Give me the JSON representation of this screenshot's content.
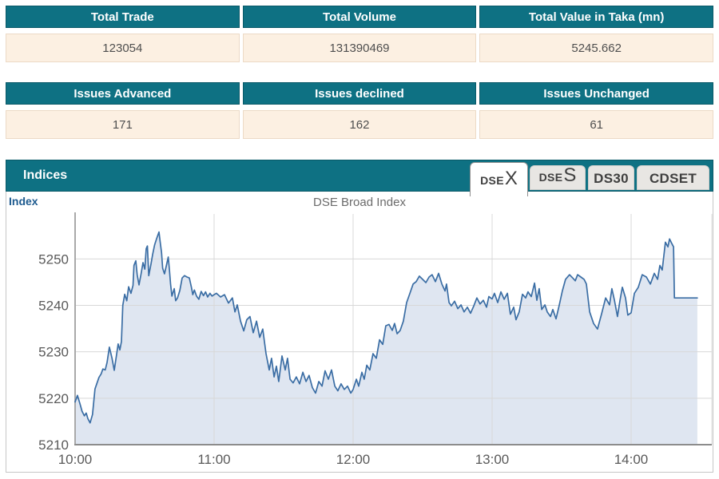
{
  "colors": {
    "teal_header": "#0e7183",
    "teal_border": "#0a5968",
    "value_row_bg": "#fcf0e2",
    "value_row_border": "#ecdac6",
    "axis_label_blue": "#1d5a8f"
  },
  "summary_tables": [
    {
      "columns": [
        {
          "header": "Total Trade",
          "value": "123054"
        },
        {
          "header": "Total Volume",
          "value": "131390469"
        },
        {
          "header": "Total Value in Taka (mn)",
          "value": "5245.662"
        }
      ]
    },
    {
      "columns": [
        {
          "header": "Issues Advanced",
          "value": "171"
        },
        {
          "header": "Issues declined",
          "value": "162"
        },
        {
          "header": "Issues Unchanged",
          "value": "61"
        }
      ]
    }
  ],
  "indices_panel": {
    "title": "Indices",
    "tabs": [
      {
        "prefix": "DSE",
        "suffix": "X",
        "active": true
      },
      {
        "prefix": "DSE",
        "suffix": "S",
        "active": false
      },
      {
        "prefix": "DS30",
        "suffix": "",
        "active": false
      },
      {
        "prefix": "CDSET",
        "suffix": "",
        "active": false
      }
    ]
  },
  "chart_data": {
    "type": "area",
    "title": "DSE Broad Index",
    "axis_label": "Index",
    "x_tick_minutes": [
      0,
      60,
      120,
      180,
      240
    ],
    "x_tick_labels": [
      "10:00",
      "11:00",
      "12:00",
      "13:00",
      "14:00"
    ],
    "y_ticks": [
      5210,
      5220,
      5230,
      5240,
      5250
    ],
    "ylim": [
      5210,
      5259
    ],
    "xlim_minutes": [
      0,
      275
    ],
    "grid": true,
    "line_color": "#3a6da4",
    "fill_color": "#dce3f0",
    "grid_color": "#d8d8d8",
    "tick_color": "#5a5a5a",
    "series": [
      {
        "name": "DSE Broad Index",
        "points": [
          [
            0,
            5219.2
          ],
          [
            1,
            5220.6
          ],
          [
            2,
            5219.0
          ],
          [
            3,
            5217.2
          ],
          [
            4,
            5216.2
          ],
          [
            4.8,
            5216.8
          ],
          [
            5.5,
            5215.6
          ],
          [
            6.5,
            5214.7
          ],
          [
            7.5,
            5216.5
          ],
          [
            8.6,
            5222.0
          ],
          [
            10.3,
            5224.5
          ],
          [
            11.2,
            5225.2
          ],
          [
            12,
            5226.3
          ],
          [
            13,
            5226.1
          ],
          [
            13.8,
            5227.7
          ],
          [
            14.8,
            5231.0
          ],
          [
            15.9,
            5228.7
          ],
          [
            16.9,
            5226.0
          ],
          [
            18,
            5229.7
          ],
          [
            18.6,
            5231.7
          ],
          [
            19.3,
            5230.4
          ],
          [
            20,
            5232.2
          ],
          [
            20.6,
            5240.0
          ],
          [
            21.4,
            5242.4
          ],
          [
            22.3,
            5241.0
          ],
          [
            23.1,
            5244.0
          ],
          [
            24.1,
            5242.6
          ],
          [
            25,
            5244.3
          ],
          [
            25.4,
            5248.6
          ],
          [
            26.2,
            5249.6
          ],
          [
            26.8,
            5246.6
          ],
          [
            27.6,
            5244.4
          ],
          [
            28.4,
            5246.6
          ],
          [
            29.3,
            5249.2
          ],
          [
            30.1,
            5247.8
          ],
          [
            30.7,
            5252.2
          ],
          [
            31.2,
            5252.8
          ],
          [
            31.8,
            5246.4
          ],
          [
            32.8,
            5249.0
          ],
          [
            33.5,
            5251.0
          ],
          [
            34.3,
            5253.0
          ],
          [
            35.2,
            5254.4
          ],
          [
            36.2,
            5255.8
          ],
          [
            36.8,
            5253.4
          ],
          [
            37.3,
            5251.4
          ],
          [
            37.8,
            5248.0
          ],
          [
            38.6,
            5246.8
          ],
          [
            39.4,
            5248.6
          ],
          [
            40.2,
            5250.4
          ],
          [
            40.7,
            5247.8
          ],
          [
            41.2,
            5244.6
          ],
          [
            41.8,
            5242.0
          ],
          [
            42.8,
            5243.6
          ],
          [
            43.4,
            5241.0
          ],
          [
            44.2,
            5241.6
          ],
          [
            45.2,
            5243.2
          ],
          [
            46.2,
            5245.9
          ],
          [
            47.2,
            5246.4
          ],
          [
            48.3,
            5246.1
          ],
          [
            49.3,
            5245.9
          ],
          [
            50.2,
            5243.9
          ],
          [
            50.8,
            5242.3
          ],
          [
            51.5,
            5243.3
          ],
          [
            52.4,
            5242.0
          ],
          [
            53.4,
            5241.3
          ],
          [
            54.4,
            5243.0
          ],
          [
            55.4,
            5242.1
          ],
          [
            56.3,
            5242.9
          ],
          [
            57.2,
            5241.8
          ],
          [
            58.2,
            5242.6
          ],
          [
            59.1,
            5242.0
          ],
          [
            60,
            5242.3
          ],
          [
            61,
            5242.6
          ],
          [
            62.8,
            5241.8
          ],
          [
            64.5,
            5242.3
          ],
          [
            66.2,
            5240.5
          ],
          [
            67.9,
            5241.6
          ],
          [
            69,
            5238.6
          ],
          [
            70,
            5240.1
          ],
          [
            71.4,
            5236.6
          ],
          [
            72.8,
            5234.5
          ],
          [
            74.1,
            5236.9
          ],
          [
            75.5,
            5237.6
          ],
          [
            76.9,
            5234.1
          ],
          [
            78.3,
            5236.6
          ],
          [
            79.7,
            5233.1
          ],
          [
            81,
            5234.9
          ],
          [
            82.4,
            5229.6
          ],
          [
            83.8,
            5226.1
          ],
          [
            84.8,
            5228.6
          ],
          [
            85.9,
            5224.6
          ],
          [
            86.9,
            5226.9
          ],
          [
            87.9,
            5223.6
          ],
          [
            89.3,
            5229.1
          ],
          [
            90.7,
            5226.1
          ],
          [
            91.7,
            5228.6
          ],
          [
            92.8,
            5224.1
          ],
          [
            94.1,
            5223.3
          ],
          [
            95.5,
            5224.6
          ],
          [
            96.9,
            5223.1
          ],
          [
            98.3,
            5225.6
          ],
          [
            99.7,
            5223.6
          ],
          [
            101,
            5224.9
          ],
          [
            102.4,
            5222.3
          ],
          [
            103.8,
            5221.1
          ],
          [
            105.2,
            5223.6
          ],
          [
            106.6,
            5222.6
          ],
          [
            107.9,
            5225.9
          ],
          [
            109.3,
            5224.1
          ],
          [
            110.7,
            5226.1
          ],
          [
            112.1,
            5222.6
          ],
          [
            113.4,
            5221.6
          ],
          [
            114.8,
            5223.1
          ],
          [
            116.2,
            5221.9
          ],
          [
            117.6,
            5222.6
          ],
          [
            119,
            5221.1
          ],
          [
            120,
            5221.9
          ],
          [
            121.4,
            5224.1
          ],
          [
            122.4,
            5222.6
          ],
          [
            123.8,
            5225.6
          ],
          [
            124.8,
            5224.1
          ],
          [
            125.9,
            5227.1
          ],
          [
            127.2,
            5226.1
          ],
          [
            128.6,
            5229.6
          ],
          [
            130,
            5228.6
          ],
          [
            131.4,
            5232.6
          ],
          [
            132.8,
            5231.6
          ],
          [
            134.1,
            5235.6
          ],
          [
            135.5,
            5235.9
          ],
          [
            136.9,
            5234.6
          ],
          [
            137.9,
            5236.1
          ],
          [
            139,
            5233.9
          ],
          [
            140.3,
            5234.6
          ],
          [
            141.7,
            5236.6
          ],
          [
            143.1,
            5240.6
          ],
          [
            144.5,
            5242.6
          ],
          [
            145.9,
            5244.6
          ],
          [
            147.2,
            5245.1
          ],
          [
            148.6,
            5246.3
          ],
          [
            150,
            5245.6
          ],
          [
            151.4,
            5244.9
          ],
          [
            152.8,
            5246.1
          ],
          [
            154.1,
            5246.6
          ],
          [
            155.5,
            5245.1
          ],
          [
            156.9,
            5246.9
          ],
          [
            158.3,
            5244.6
          ],
          [
            159.7,
            5243.1
          ],
          [
            160.3,
            5244.6
          ],
          [
            161.4,
            5240.6
          ],
          [
            162.4,
            5239.9
          ],
          [
            163.8,
            5240.9
          ],
          [
            165.2,
            5239.3
          ],
          [
            166.6,
            5240.1
          ],
          [
            167.9,
            5238.6
          ],
          [
            169.3,
            5239.6
          ],
          [
            170.7,
            5238.3
          ],
          [
            172.1,
            5239.9
          ],
          [
            173.4,
            5241.6
          ],
          [
            174.8,
            5240.3
          ],
          [
            176.2,
            5241.1
          ],
          [
            177.6,
            5239.6
          ],
          [
            178.6,
            5241.9
          ],
          [
            180,
            5241.4
          ],
          [
            181,
            5242.6
          ],
          [
            182.4,
            5240.6
          ],
          [
            183.8,
            5242.9
          ],
          [
            185.2,
            5241.3
          ],
          [
            186.6,
            5242.6
          ],
          [
            187.9,
            5238.1
          ],
          [
            189.3,
            5239.6
          ],
          [
            190.3,
            5236.9
          ],
          [
            191.7,
            5238.6
          ],
          [
            193.1,
            5242.4
          ],
          [
            194.5,
            5241.6
          ],
          [
            195.5,
            5242.9
          ],
          [
            196.9,
            5241.9
          ],
          [
            198.3,
            5244.8
          ],
          [
            199.3,
            5241.1
          ],
          [
            200.3,
            5243.6
          ],
          [
            201.4,
            5239.1
          ],
          [
            202.8,
            5240.1
          ],
          [
            203.8,
            5238.6
          ],
          [
            205.2,
            5237.6
          ],
          [
            206.2,
            5239.1
          ],
          [
            207.6,
            5237.1
          ],
          [
            209,
            5240.1
          ],
          [
            210.3,
            5243.1
          ],
          [
            211.7,
            5245.6
          ],
          [
            213.4,
            5246.6
          ],
          [
            214.8,
            5245.9
          ],
          [
            215.9,
            5245.3
          ],
          [
            216.9,
            5246.6
          ],
          [
            218.3,
            5246.1
          ],
          [
            219.7,
            5245.6
          ],
          [
            220.7,
            5244.6
          ],
          [
            222.1,
            5238.6
          ],
          [
            223.8,
            5236.1
          ],
          [
            225.5,
            5234.9
          ],
          [
            227.2,
            5238.1
          ],
          [
            229,
            5241.6
          ],
          [
            230.7,
            5240.1
          ],
          [
            231.7,
            5243.6
          ],
          [
            232.8,
            5241.1
          ],
          [
            234.1,
            5237.6
          ],
          [
            235.2,
            5241.1
          ],
          [
            236.2,
            5243.9
          ],
          [
            237.6,
            5241.6
          ],
          [
            238.6,
            5237.9
          ],
          [
            240,
            5238.4
          ],
          [
            241.4,
            5242.6
          ],
          [
            243.1,
            5243.9
          ],
          [
            244.8,
            5246.6
          ],
          [
            246.6,
            5246.1
          ],
          [
            248.3,
            5244.6
          ],
          [
            250,
            5246.9
          ],
          [
            251.4,
            5245.6
          ],
          [
            252.4,
            5248.6
          ],
          [
            253.4,
            5247.6
          ],
          [
            254.8,
            5253.6
          ],
          [
            255.9,
            5252.6
          ],
          [
            256.6,
            5254.3
          ],
          [
            257.6,
            5253.3
          ],
          [
            258.3,
            5252.6
          ],
          [
            258.7,
            5241.6
          ],
          [
            268.6,
            5241.6
          ]
        ]
      }
    ]
  }
}
